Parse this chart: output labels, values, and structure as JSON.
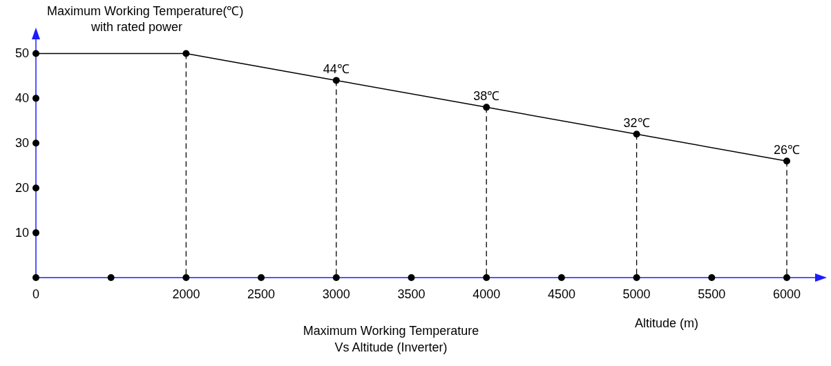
{
  "chart_data": {
    "type": "line",
    "title": "Maximum Working Temperature\nVs Altitude (Inverter)",
    "ylabel": "Maximum Working Temperature(℃)\nwith rated power",
    "xlabel": "Altitude (m)",
    "categories": [
      "0",
      null,
      "2000",
      "2500",
      "3000",
      "3500",
      "4000",
      "4500",
      "5000",
      "5500",
      "6000"
    ],
    "series": [
      {
        "color": "#000000",
        "values": [
          50,
          null,
          50,
          null,
          44,
          null,
          38,
          null,
          32,
          null,
          26
        ],
        "value_labels": [
          null,
          null,
          null,
          null,
          "44℃",
          null,
          "38℃",
          null,
          "32℃",
          null,
          "26℃"
        ]
      },
      {
        "type": "scatter",
        "color": "#000000",
        "values": [
          0,
          0,
          0,
          0,
          0,
          0,
          0,
          0,
          0,
          0,
          0
        ]
      },
      {
        "type": "scatter",
        "color": "#000000",
        "x": [
          "0",
          "0",
          "0",
          "0"
        ],
        "values": [
          10,
          20,
          30,
          40
        ]
      }
    ],
    "ylim": [
      0,
      55
    ],
    "yticks": [
      10,
      20,
      30,
      40,
      50
    ],
    "marker": "circle",
    "line_style": "solid"
  }
}
